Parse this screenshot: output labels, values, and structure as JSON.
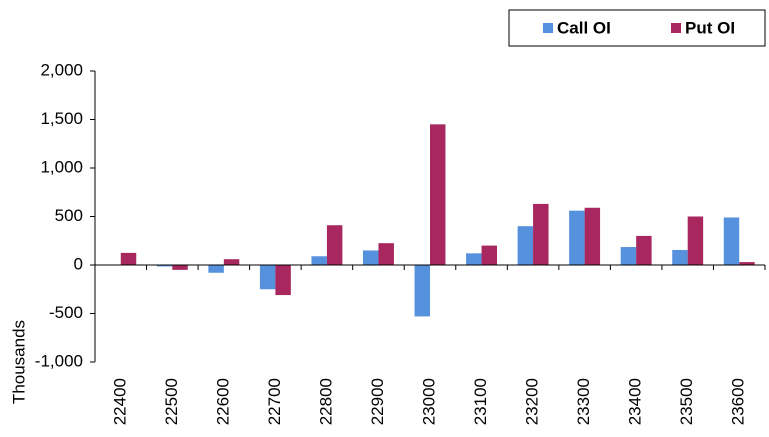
{
  "chart_data": {
    "type": "bar",
    "categories": [
      "22400",
      "22500",
      "22600",
      "22700",
      "22800",
      "22900",
      "23000",
      "23100",
      "23200",
      "23300",
      "23400",
      "23500",
      "23600"
    ],
    "series": [
      {
        "name": "Call OI",
        "color": "#5591dd",
        "values": [
          0,
          -15,
          -80,
          -250,
          90,
          150,
          -530,
          120,
          400,
          560,
          185,
          155,
          490
        ]
      },
      {
        "name": "Put OI",
        "color": "#a8275f",
        "values": [
          125,
          -50,
          60,
          -310,
          410,
          225,
          1450,
          200,
          630,
          590,
          300,
          500,
          30
        ]
      }
    ],
    "ylabel": "Thousands",
    "ylim": [
      -1000,
      2000
    ],
    "yticks": [
      {
        "value": -1000,
        "label": "-1,000"
      },
      -500,
      0,
      500,
      {
        "value": 1000,
        "label": "1,000"
      },
      {
        "value": 1500,
        "label": "1,500"
      },
      {
        "value": 2000,
        "label": "2,000"
      }
    ],
    "legend": "top-right"
  }
}
